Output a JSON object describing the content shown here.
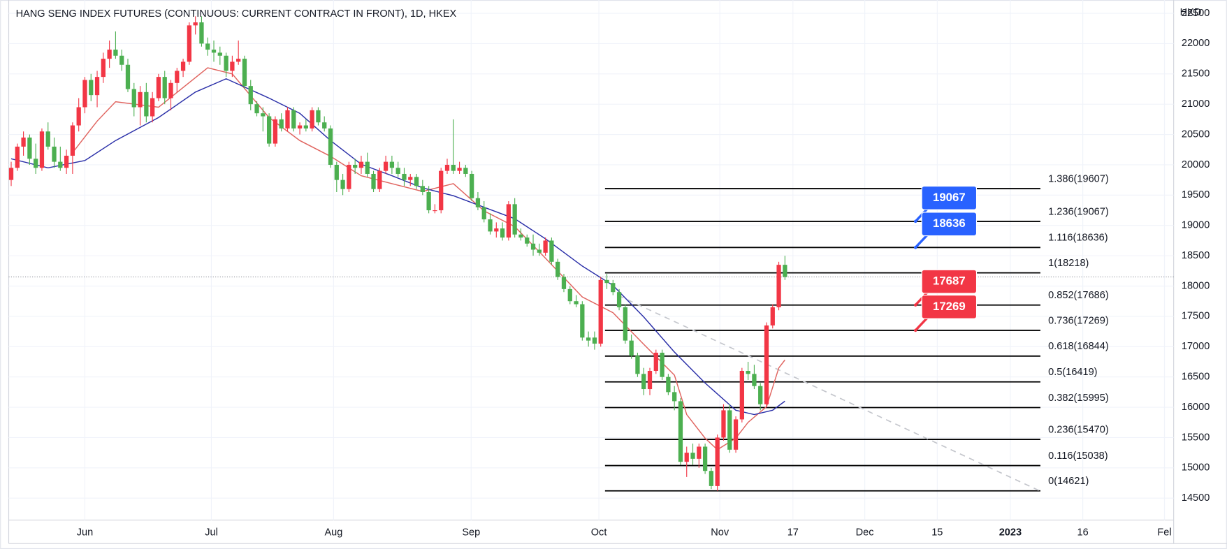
{
  "chart_data": {
    "type": "candlestick",
    "title": "HANG SENG INDEX FUTURES (CONTINUOUS: CURRENT CONTRACT IN FRONT), 1D, HKEX",
    "currency": "HKD",
    "up_color": "#f23645",
    "down_color": "#4caf50",
    "grid": true,
    "ylim": [
      14139,
      22719
    ],
    "yticks": [
      14500,
      15000,
      15500,
      16000,
      16500,
      17000,
      17500,
      18000,
      18500,
      19000,
      19500,
      20000,
      20500,
      21000,
      21500,
      22000,
      22500
    ],
    "xlim": [
      -1.8,
      189.3
    ],
    "xticks": [
      {
        "value": 12,
        "label": "Jun"
      },
      {
        "value": 32.6,
        "label": "Jul"
      },
      {
        "value": 52.5,
        "label": "Aug"
      },
      {
        "value": 74.9,
        "label": "Sep"
      },
      {
        "value": 95.7,
        "label": "Oct"
      },
      {
        "value": 115.4,
        "label": "Nov"
      },
      {
        "value": 127.3,
        "label": "17"
      },
      {
        "value": 139,
        "label": "Dec"
      },
      {
        "value": 150.8,
        "label": "15"
      },
      {
        "value": 162.7,
        "label": "2023"
      },
      {
        "value": 174.5,
        "label": "16"
      },
      {
        "value": 187.8,
        "label": "Fel"
      }
    ],
    "candles": [
      [
        19750,
        20050,
        19650,
        19950
      ],
      [
        19950,
        20350,
        19900,
        20300
      ],
      [
        20300,
        20550,
        20150,
        20450
      ],
      [
        20450,
        20500,
        20000,
        20100
      ],
      [
        20100,
        20350,
        19850,
        19950
      ],
      [
        19950,
        20600,
        19900,
        20550
      ],
      [
        20550,
        20700,
        20250,
        20300
      ],
      [
        20300,
        20450,
        19950,
        20050
      ],
      [
        20050,
        20300,
        19900,
        19950
      ],
      [
        19950,
        20250,
        19850,
        20150
      ],
      [
        20150,
        20700,
        19850,
        20650
      ],
      [
        20650,
        21100,
        20550,
        20950
      ],
      [
        20950,
        21450,
        20850,
        21400
      ],
      [
        21400,
        21500,
        21050,
        21150
      ],
      [
        21150,
        21550,
        20950,
        21450
      ],
      [
        21450,
        21850,
        21350,
        21750
      ],
      [
        21750,
        22050,
        21600,
        21900
      ],
      [
        21900,
        22200,
        21750,
        21800
      ],
      [
        21800,
        21900,
        21550,
        21650
      ],
      [
        21650,
        21750,
        21200,
        21250
      ],
      [
        21250,
        21350,
        20800,
        20950
      ],
      [
        20950,
        21300,
        20650,
        21200
      ],
      [
        21200,
        21350,
        20700,
        20800
      ],
      [
        20800,
        21200,
        20700,
        21100
      ],
      [
        21100,
        21500,
        21050,
        21450
      ],
      [
        21450,
        21550,
        21000,
        21100
      ],
      [
        21100,
        21400,
        20900,
        21350
      ],
      [
        21350,
        21600,
        21200,
        21550
      ],
      [
        21550,
        21750,
        21450,
        21700
      ],
      [
        21700,
        22350,
        21650,
        22300
      ],
      [
        22300,
        22450,
        22150,
        22350
      ],
      [
        22350,
        22450,
        21950,
        22000
      ],
      [
        22000,
        22100,
        21800,
        21900
      ],
      [
        21900,
        22050,
        21700,
        21850
      ],
      [
        21850,
        21950,
        21650,
        21800
      ],
      [
        21800,
        21850,
        21450,
        21550
      ],
      [
        21550,
        21800,
        21450,
        21700
      ],
      [
        21700,
        22050,
        21650,
        21750
      ],
      [
        21750,
        21800,
        21250,
        21300
      ],
      [
        21300,
        21400,
        20900,
        21000
      ],
      [
        21000,
        21050,
        20800,
        20850
      ],
      [
        20850,
        20950,
        20550,
        20800
      ],
      [
        20800,
        20850,
        20300,
        20350
      ],
      [
        20350,
        20800,
        20300,
        20750
      ],
      [
        20750,
        20850,
        20550,
        20600
      ],
      [
        20600,
        20950,
        20550,
        20900
      ],
      [
        20900,
        20950,
        20550,
        20600
      ],
      [
        20600,
        20700,
        20500,
        20650
      ],
      [
        20650,
        20750,
        20550,
        20600
      ],
      [
        20600,
        20950,
        20550,
        20900
      ],
      [
        20900,
        20950,
        20650,
        20700
      ],
      [
        20700,
        20800,
        20550,
        20600
      ],
      [
        20600,
        20650,
        19950,
        20000
      ],
      [
        20000,
        20050,
        19550,
        19750
      ],
      [
        19750,
        19850,
        19500,
        19600
      ],
      [
        19600,
        20050,
        19550,
        20000
      ],
      [
        20000,
        20100,
        19850,
        19950
      ],
      [
        19950,
        20150,
        19850,
        20050
      ],
      [
        20050,
        20200,
        19800,
        19850
      ],
      [
        19850,
        19900,
        19550,
        19600
      ],
      [
        19600,
        19950,
        19550,
        19900
      ],
      [
        19900,
        20150,
        19850,
        20050
      ],
      [
        20050,
        20150,
        19850,
        19950
      ],
      [
        19950,
        20050,
        19800,
        19850
      ],
      [
        19850,
        19950,
        19650,
        19750
      ],
      [
        19750,
        19850,
        19650,
        19800
      ],
      [
        19800,
        19850,
        19600,
        19650
      ],
      [
        19650,
        19750,
        19500,
        19550
      ],
      [
        19550,
        19650,
        19200,
        19250
      ],
      [
        19250,
        19350,
        19200,
        19250
      ],
      [
        19250,
        19950,
        19200,
        19900
      ],
      [
        19900,
        20100,
        19850,
        20000
      ],
      [
        20000,
        20750,
        19850,
        19900
      ],
      [
        19900,
        20050,
        19850,
        19950
      ],
      [
        19950,
        20000,
        19800,
        19850
      ],
      [
        19850,
        19900,
        19400,
        19450
      ],
      [
        19450,
        19550,
        19250,
        19300
      ],
      [
        19300,
        19400,
        19050,
        19100
      ],
      [
        19100,
        19200,
        18850,
        18900
      ],
      [
        18900,
        19050,
        18800,
        18950
      ],
      [
        18950,
        19050,
        18750,
        18800
      ],
      [
        18800,
        19400,
        18750,
        19350
      ],
      [
        19350,
        19450,
        18800,
        18850
      ],
      [
        18850,
        18950,
        18750,
        18800
      ],
      [
        18800,
        18850,
        18650,
        18700
      ],
      [
        18700,
        18850,
        18500,
        18600
      ],
      [
        18600,
        18700,
        18500,
        18550
      ],
      [
        18550,
        18800,
        18500,
        18750
      ],
      [
        18750,
        18800,
        18350,
        18400
      ],
      [
        18400,
        18450,
        18100,
        18150
      ],
      [
        18150,
        18200,
        17900,
        17950
      ],
      [
        17950,
        18000,
        17700,
        17750
      ],
      [
        17750,
        17850,
        17650,
        17700
      ],
      [
        17700,
        17750,
        17100,
        17150
      ],
      [
        17150,
        17250,
        17000,
        17100
      ],
      [
        17150,
        17250,
        16950,
        17050
      ],
      [
        17050,
        18150,
        17000,
        18100
      ],
      [
        18100,
        18200,
        17950,
        18050
      ],
      [
        18050,
        18100,
        17850,
        17900
      ],
      [
        17900,
        17950,
        17600,
        17650
      ],
      [
        17650,
        17700,
        17050,
        17100
      ],
      [
        17100,
        17200,
        16800,
        16850
      ],
      [
        16850,
        16900,
        16500,
        16550
      ],
      [
        16550,
        16650,
        16200,
        16300
      ],
      [
        16300,
        16650,
        16200,
        16600
      ],
      [
        16600,
        16950,
        16550,
        16900
      ],
      [
        16900,
        16950,
        16450,
        16500
      ],
      [
        16500,
        16550,
        16200,
        16250
      ],
      [
        16250,
        16350,
        15950,
        16100
      ],
      [
        16100,
        16150,
        15050,
        15100
      ],
      [
        15100,
        15350,
        14850,
        15250
      ],
      [
        15250,
        15400,
        15050,
        15150
      ],
      [
        15150,
        15400,
        15000,
        15350
      ],
      [
        15350,
        15400,
        14900,
        14950
      ],
      [
        14950,
        15000,
        14650,
        14700
      ],
      [
        14700,
        15550,
        14621,
        15500
      ],
      [
        15500,
        16050,
        15450,
        15950
      ],
      [
        15950,
        16050,
        15250,
        15300
      ],
      [
        15300,
        15850,
        15250,
        15800
      ],
      [
        15800,
        16650,
        15750,
        16600
      ],
      [
        16600,
        16750,
        16450,
        16550
      ],
      [
        16550,
        16700,
        16300,
        16350
      ],
      [
        16350,
        16400,
        15950,
        16050
      ],
      [
        16050,
        17400,
        16000,
        17350
      ],
      [
        17350,
        17700,
        17300,
        17650
      ],
      [
        17650,
        18400,
        17600,
        18350
      ],
      [
        18350,
        18500,
        18100,
        18150
      ]
    ],
    "series": [
      {
        "color": "#e0645f",
        "x": [
          10,
          14,
          17,
          24,
          32,
          36,
          42,
          47,
          52,
          57,
          62,
          67,
          72,
          77,
          82,
          87,
          93,
          98,
          103,
          108,
          110,
          113,
          115,
          118,
          120,
          123,
          125,
          126
        ],
        "values": [
          20200,
          20720,
          21040,
          20950,
          21600,
          21500,
          20780,
          20400,
          20140,
          19820,
          19690,
          19560,
          19690,
          19240,
          18980,
          18460,
          17820,
          17560,
          17040,
          16530,
          15880,
          15490,
          15300,
          15490,
          15750,
          16010,
          16650,
          16780
        ]
      },
      {
        "color": "#2a2fa8",
        "x": [
          0,
          6,
          12,
          17,
          24,
          30,
          35,
          42,
          47,
          52,
          57,
          62,
          67,
          72,
          77,
          82,
          87,
          93,
          98,
          103,
          108,
          113,
          118,
          121,
          124,
          126
        ],
        "values": [
          20100,
          19950,
          20070,
          20400,
          20780,
          21200,
          21420,
          21100,
          20850,
          20400,
          20010,
          19820,
          19620,
          19490,
          19300,
          19110,
          18780,
          18330,
          18010,
          17490,
          16910,
          16400,
          15950,
          15880,
          15950,
          16100
        ]
      }
    ],
    "fib_x": [
      96.7,
      167.6
    ],
    "fib_levels": [
      {
        "value": 19607,
        "label": "1.386(19607)"
      },
      {
        "value": 19067,
        "label": "1.236(19067)"
      },
      {
        "value": 18636,
        "label": "1.116(18636)"
      },
      {
        "value": 18218,
        "label": "1(18218)"
      },
      {
        "value": 17686,
        "label": "0.852(17686)"
      },
      {
        "value": 17269,
        "label": "0.736(17269)"
      },
      {
        "value": 16844,
        "label": "0.618(16844)"
      },
      {
        "value": 16419,
        "label": "0.5(16419)"
      },
      {
        "value": 15995,
        "label": "0.382(15995)"
      },
      {
        "value": 15470,
        "label": "0.236(15470)"
      },
      {
        "value": 15038,
        "label": "0.116(15038)"
      },
      {
        "value": 14621,
        "label": "0(14621)"
      }
    ],
    "trendline": {
      "x": [
        98.9,
        167.6
      ],
      "values": [
        17842,
        14616
      ]
    },
    "callouts": [
      {
        "value": 19067,
        "label": "19067",
        "color": "#2962ff"
      },
      {
        "value": 18636,
        "label": "18636",
        "color": "#2962ff"
      },
      {
        "value": 17687,
        "label": "17687",
        "color": "#f23645"
      },
      {
        "value": 17269,
        "label": "17269",
        "color": "#f23645"
      }
    ]
  }
}
